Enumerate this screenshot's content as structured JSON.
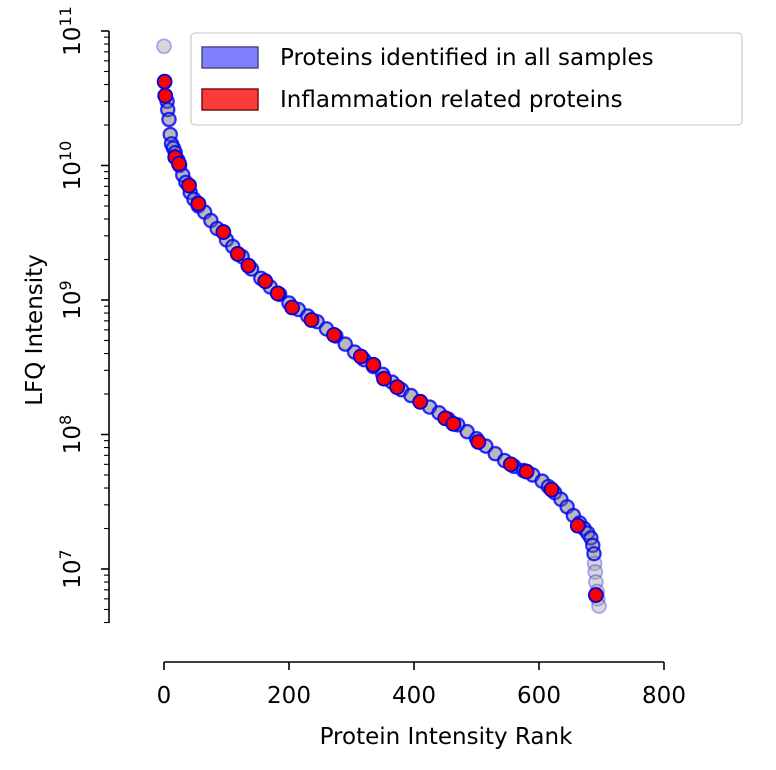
{
  "chart_data": {
    "type": "scatter",
    "xlabel": "Protein Intensity Rank",
    "ylabel": "LFQ Intensity",
    "xlim": [
      0,
      800
    ],
    "ylim": [
      4000000,
      100000000000
    ],
    "y_scale": "log",
    "x_ticks": [
      0,
      200,
      400,
      600,
      800
    ],
    "y_ticks": [
      {
        "value": 10000000,
        "base": "10",
        "exp": "7"
      },
      {
        "value": 100000000,
        "base": "10",
        "exp": "8"
      },
      {
        "value": 1000000000,
        "base": "10",
        "exp": "9"
      },
      {
        "value": 10000000000,
        "base": "10",
        "exp": "10"
      },
      {
        "value": 100000000000,
        "base": "10",
        "exp": "11"
      }
    ],
    "grid": false,
    "legend_position": "top-right",
    "series": [
      {
        "name": "Proteins identified in all samples",
        "color": "#0000ff",
        "points": [
          [
            0,
            77000000000
          ],
          [
            5,
            30000000000
          ],
          [
            6,
            26000000000
          ],
          [
            8,
            22000000000
          ],
          [
            10,
            17000000000
          ],
          [
            12,
            14500000000
          ],
          [
            15,
            13500000000
          ],
          [
            18,
            12500000000
          ],
          [
            22,
            11000000000
          ],
          [
            25,
            10000000000
          ],
          [
            30,
            8500000000
          ],
          [
            35,
            7500000000
          ],
          [
            42,
            6300000000
          ],
          [
            48,
            5600000000
          ],
          [
            55,
            5000000000
          ],
          [
            65,
            4500000000
          ],
          [
            75,
            3900000000
          ],
          [
            85,
            3400000000
          ],
          [
            100,
            2800000000
          ],
          [
            110,
            2500000000
          ],
          [
            125,
            2100000000
          ],
          [
            140,
            1700000000
          ],
          [
            155,
            1450000000
          ],
          [
            170,
            1250000000
          ],
          [
            185,
            1100000000
          ],
          [
            200,
            950000000
          ],
          [
            215,
            850000000
          ],
          [
            230,
            760000000
          ],
          [
            245,
            690000000
          ],
          [
            260,
            610000000
          ],
          [
            275,
            540000000
          ],
          [
            290,
            470000000
          ],
          [
            305,
            410000000
          ],
          [
            320,
            360000000
          ],
          [
            335,
            320000000
          ],
          [
            350,
            280000000
          ],
          [
            365,
            245000000
          ],
          [
            380,
            215000000
          ],
          [
            395,
            195000000
          ],
          [
            410,
            175000000
          ],
          [
            425,
            160000000
          ],
          [
            440,
            145000000
          ],
          [
            455,
            130000000
          ],
          [
            470,
            118000000
          ],
          [
            485,
            105000000
          ],
          [
            500,
            93000000
          ],
          [
            515,
            82000000
          ],
          [
            530,
            72000000
          ],
          [
            545,
            64000000
          ],
          [
            560,
            58000000
          ],
          [
            575,
            54000000
          ],
          [
            590,
            50000000
          ],
          [
            605,
            45000000
          ],
          [
            615,
            41000000
          ],
          [
            625,
            37000000
          ],
          [
            635,
            33000000
          ],
          [
            645,
            29000000
          ],
          [
            655,
            25000000
          ],
          [
            665,
            22000000
          ],
          [
            672,
            20000000
          ],
          [
            678,
            18500000
          ],
          [
            683,
            17000000
          ],
          [
            686,
            15000000
          ],
          [
            688,
            13000000
          ],
          [
            689,
            11000000
          ],
          [
            690,
            9500000
          ],
          [
            691,
            8000000
          ],
          [
            693,
            6800000
          ],
          [
            694,
            6000000
          ],
          [
            696,
            5300000
          ]
        ]
      },
      {
        "name": "Inflammation related proteins",
        "color": "#ff0000",
        "points": [
          [
            1,
            42000000000
          ],
          [
            2,
            33000000000
          ],
          [
            18,
            11500000000
          ],
          [
            24,
            10300000000
          ],
          [
            40,
            7100000000
          ],
          [
            55,
            5200000000
          ],
          [
            95,
            3200000000
          ],
          [
            118,
            2200000000
          ],
          [
            135,
            1800000000
          ],
          [
            162,
            1380000000
          ],
          [
            182,
            1120000000
          ],
          [
            205,
            880000000
          ],
          [
            236,
            710000000
          ],
          [
            272,
            550000000
          ],
          [
            315,
            380000000
          ],
          [
            335,
            330000000
          ],
          [
            352,
            260000000
          ],
          [
            373,
            225000000
          ],
          [
            410,
            175000000
          ],
          [
            450,
            132000000
          ],
          [
            463,
            120000000
          ],
          [
            503,
            88000000
          ],
          [
            555,
            60000000
          ],
          [
            580,
            53000000
          ],
          [
            620,
            39000000
          ],
          [
            662,
            21000000
          ],
          [
            691,
            6400000
          ]
        ]
      }
    ]
  }
}
